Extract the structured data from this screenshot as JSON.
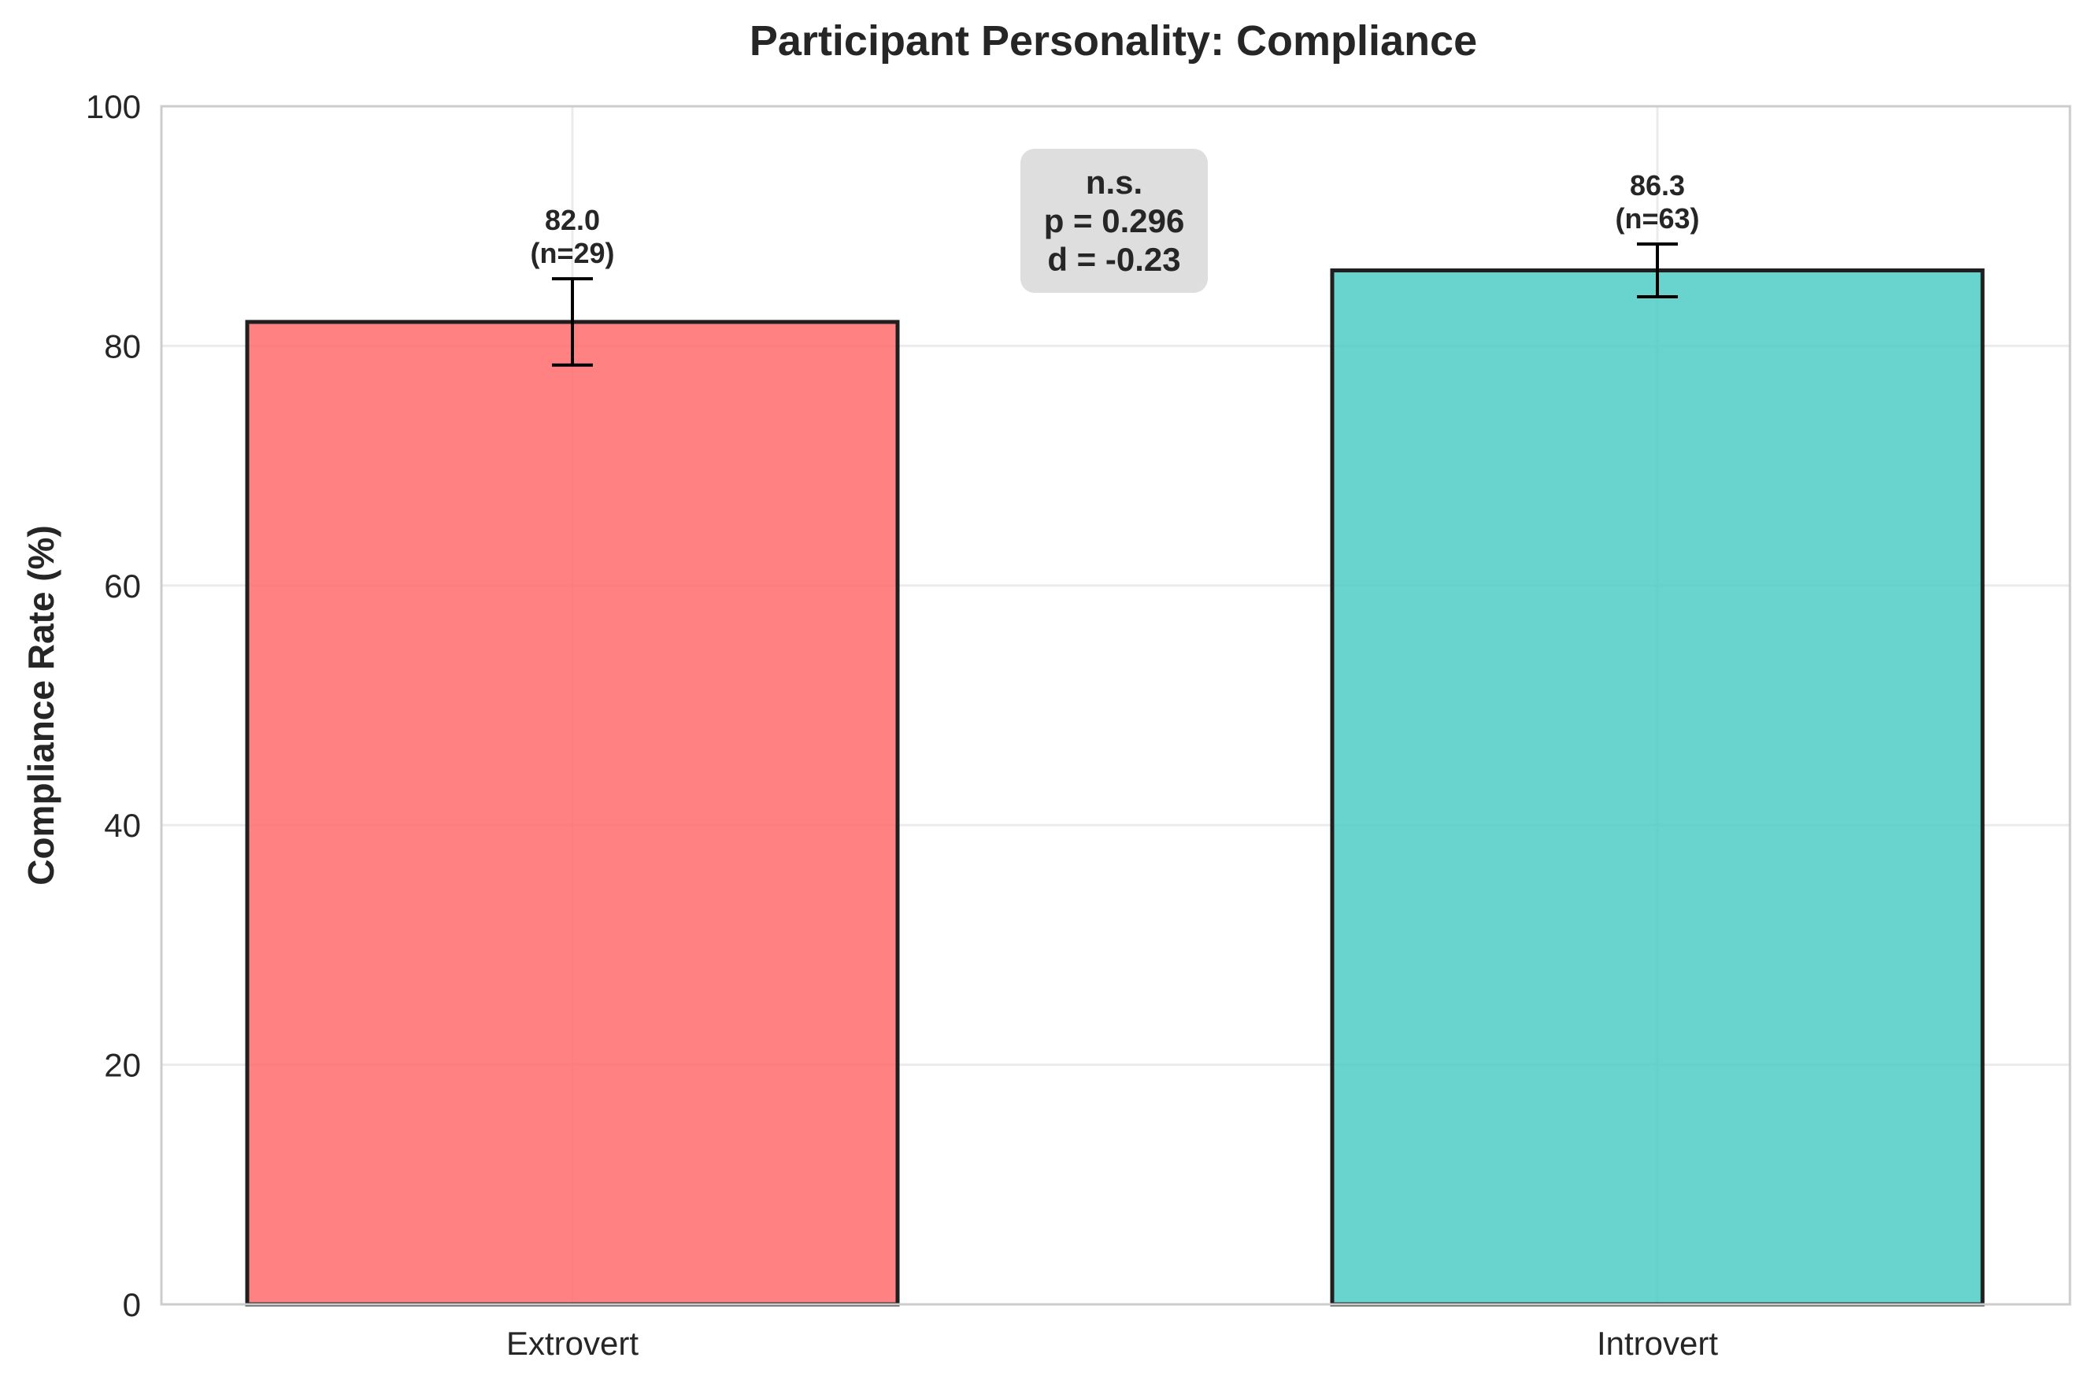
{
  "chart_data": {
    "type": "bar",
    "title": "Participant Personality: Compliance",
    "xlabel": "",
    "ylabel": "Compliance Rate (%)",
    "ylim": [
      0,
      100
    ],
    "yticks": [
      "0",
      "20",
      "40",
      "60",
      "80",
      "100"
    ],
    "grid": true,
    "categories": [
      "Extrovert",
      "Introvert"
    ],
    "values": [
      82.0,
      86.3
    ],
    "errors": [
      3.6,
      2.2
    ],
    "value_labels": [
      "82.0",
      "86.3"
    ],
    "n_labels": [
      "(n=29)",
      "(n=63)"
    ],
    "colors": [
      "#ff6b6b",
      "#4ecdc4"
    ],
    "bar_alpha": 0.85,
    "edge_color": "#1f1f1f",
    "annotation": {
      "lines": [
        "n.s.",
        "p = 0.296",
        "d = -0.23"
      ],
      "box_color": "#dedede"
    }
  }
}
